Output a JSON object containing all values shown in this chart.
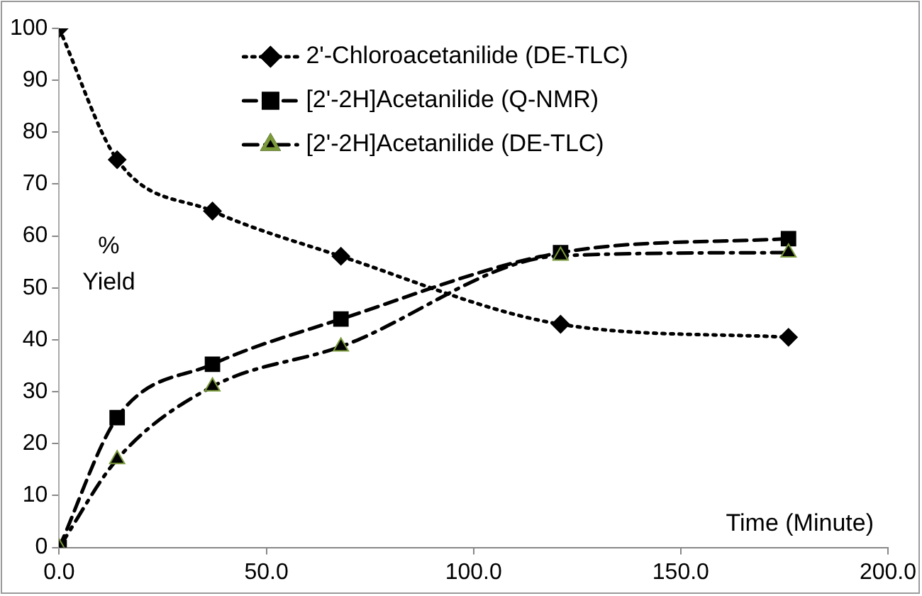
{
  "chart_data": {
    "type": "line",
    "xlabel": "Time (Minute)",
    "ylabel": "% Yield",
    "xlim": [
      0,
      200
    ],
    "xticks": [
      {
        "value": 0,
        "label": "0.0"
      },
      {
        "value": 50,
        "label": "50.0"
      },
      {
        "value": 100,
        "label": "100.0"
      },
      {
        "value": 150,
        "label": "150.0"
      },
      {
        "value": 200,
        "label": "200.0"
      }
    ],
    "ylim": [
      0,
      100
    ],
    "yticks": [
      0,
      10,
      20,
      30,
      40,
      50,
      60,
      70,
      80,
      90,
      100
    ],
    "grid": false,
    "legend": "top right",
    "x": [
      0,
      14,
      37,
      68,
      121,
      176
    ],
    "series": [
      {
        "name": "2'-Chloroacetanilide (DE-TLC)",
        "color": "#000000",
        "marker": "diamond",
        "line_style": "dotted",
        "values": [
          100,
          74.7,
          64.8,
          56.1,
          43,
          40.5
        ]
      },
      {
        "name": "[2'-2H]Acetanilide (Q-NMR)",
        "color": "#000000",
        "marker": "square",
        "line_style": "dashed",
        "values": [
          0,
          25,
          35.3,
          44,
          56.8,
          59.5
        ]
      },
      {
        "name": "[2'-2H]Acetanilide (DE-TLC)",
        "color": "#000000",
        "marker": "triangle",
        "line_style": "dashdot",
        "values": [
          0,
          17,
          31,
          38.7,
          56.2,
          56.8
        ]
      }
    ]
  }
}
